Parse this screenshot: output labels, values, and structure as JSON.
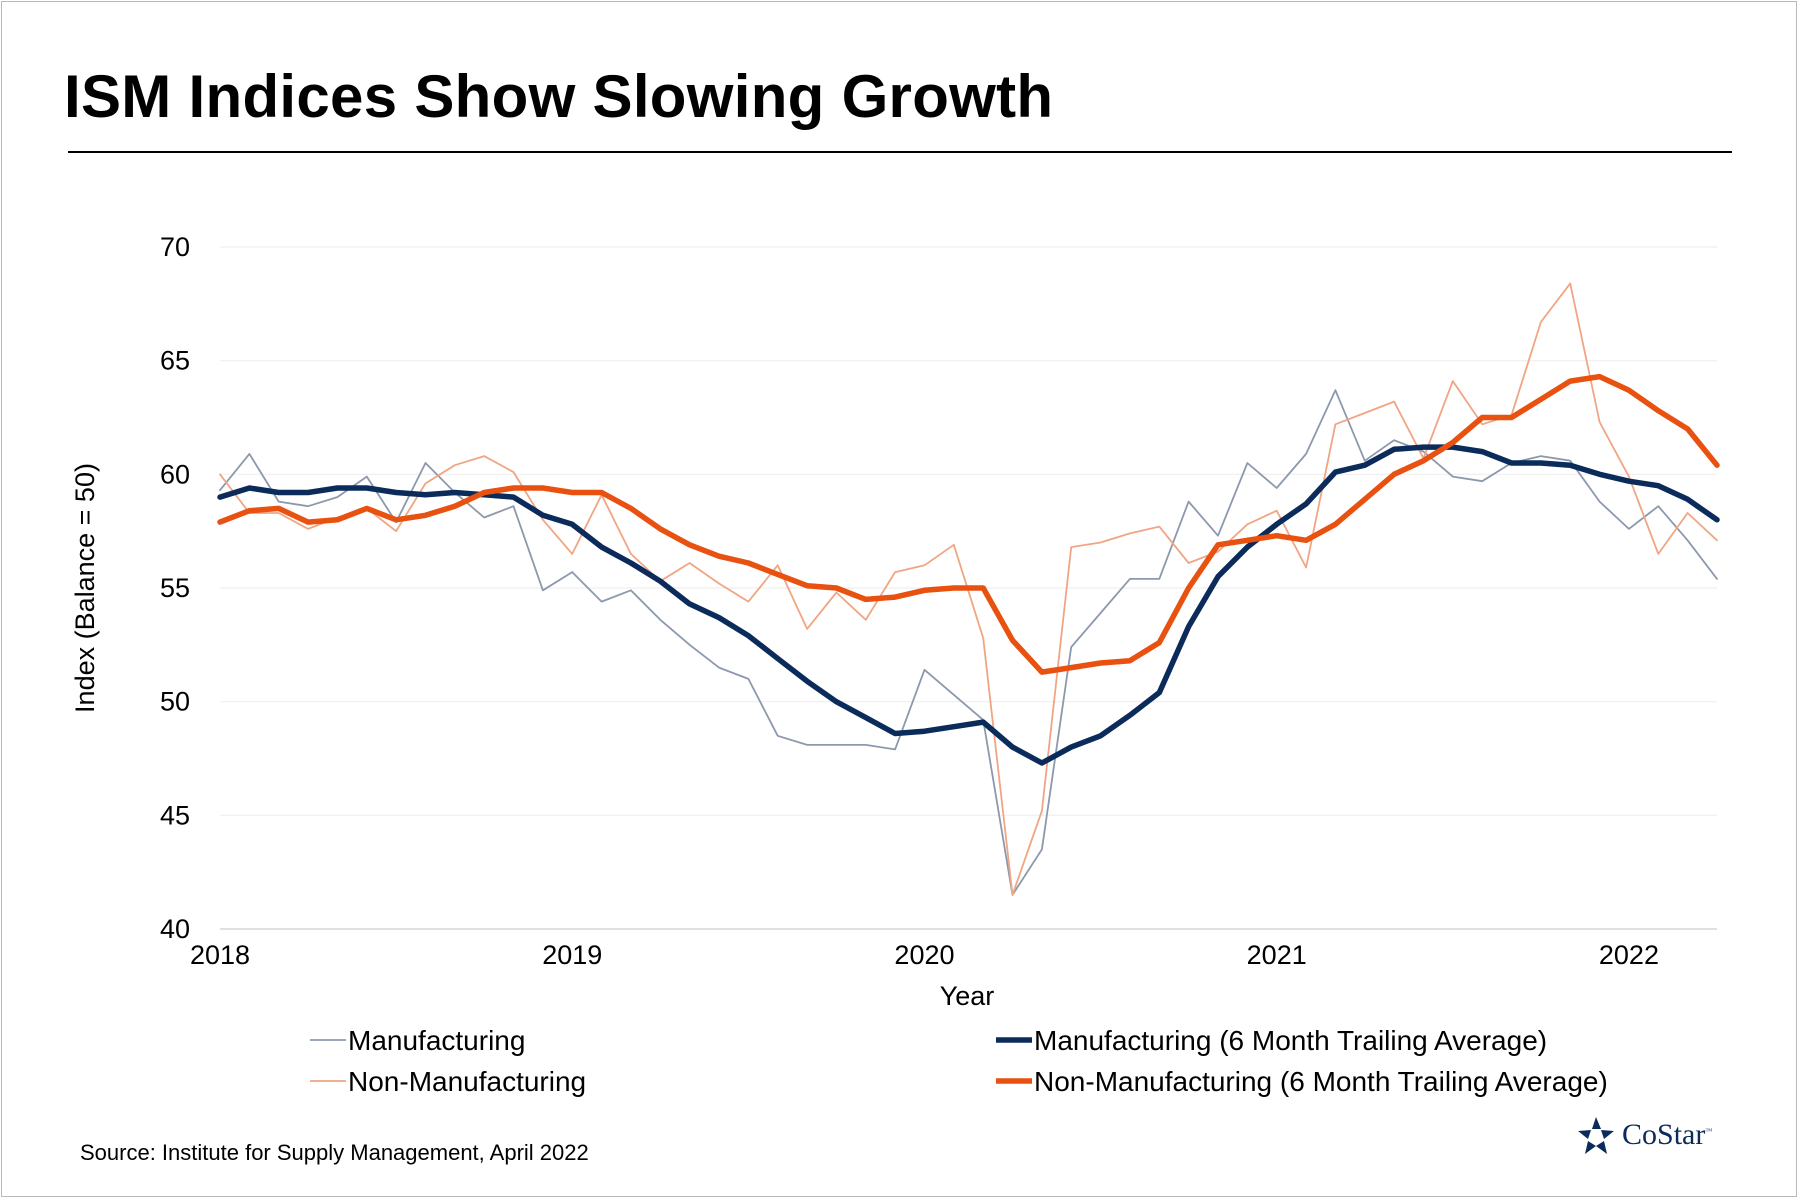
{
  "page": {
    "title": "ISM Indices Show Slowing Growth",
    "source": "Source: Institute for Supply Management, April 2022",
    "logo_text": "CoStar",
    "logo_tm": "™"
  },
  "colors": {
    "manufacturing": "#8c99ad",
    "non_manufacturing": "#f0a583",
    "manufacturing_avg": "#0b2b5b",
    "non_manufacturing_avg": "#e8510f",
    "logo": "#0b2b5b"
  },
  "chart_data": {
    "type": "line",
    "xlabel": "Year",
    "ylabel": "Index (Balance = 50)",
    "ylim": [
      40,
      70
    ],
    "yticks": [
      40,
      45,
      50,
      55,
      60,
      65,
      70
    ],
    "xlim": [
      2018.0,
      2022.25
    ],
    "xticks": [
      2018,
      2019,
      2020,
      2021,
      2022
    ],
    "grid": "horizontal",
    "legend_position": "bottom",
    "x_start": 2018.0,
    "x_step_months": 1,
    "series": [
      {
        "name": "Manufacturing",
        "color_key": "manufacturing",
        "width": "thin",
        "values": [
          59.3,
          60.9,
          58.8,
          58.6,
          59.0,
          59.9,
          57.9,
          60.5,
          59.2,
          58.1,
          58.6,
          54.9,
          55.7,
          54.4,
          54.9,
          53.6,
          52.5,
          51.5,
          51.0,
          48.5,
          48.1,
          48.1,
          48.1,
          47.9,
          51.4,
          50.3,
          49.2,
          41.5,
          43.5,
          52.4,
          53.9,
          55.4,
          55.4,
          58.8,
          57.3,
          60.5,
          59.4,
          60.9,
          63.7,
          60.6,
          61.5,
          61.0,
          59.9,
          59.7,
          60.5,
          60.8,
          60.6,
          58.8,
          57.6,
          58.6,
          57.1,
          55.4
        ]
      },
      {
        "name": "Non-Manufacturing",
        "color_key": "non_manufacturing",
        "width": "thin",
        "values": [
          60.0,
          58.3,
          58.3,
          57.6,
          58.1,
          58.5,
          57.5,
          59.6,
          60.4,
          60.8,
          60.1,
          58.0,
          56.5,
          59.1,
          56.5,
          55.3,
          56.1,
          55.2,
          54.4,
          56.0,
          53.2,
          54.8,
          53.6,
          55.7,
          56.0,
          56.9,
          52.8,
          41.5,
          45.2,
          56.8,
          57.0,
          57.4,
          57.7,
          56.1,
          56.6,
          57.8,
          58.4,
          55.9,
          62.2,
          62.7,
          63.2,
          60.7,
          64.1,
          62.2,
          62.6,
          66.7,
          68.4,
          62.3,
          59.9,
          56.5,
          58.3,
          57.1
        ]
      },
      {
        "name": "Manufacturing (6 Month Trailing Average)",
        "color_key": "manufacturing_avg",
        "width": "thick",
        "values": [
          59.0,
          59.4,
          59.2,
          59.2,
          59.4,
          59.4,
          59.2,
          59.1,
          59.2,
          59.1,
          59.0,
          58.2,
          57.8,
          56.8,
          56.1,
          55.3,
          54.3,
          53.7,
          52.9,
          51.9,
          50.9,
          50.0,
          49.3,
          48.6,
          48.7,
          48.9,
          49.1,
          48.0,
          47.3,
          48.0,
          48.5,
          49.4,
          50.4,
          53.3,
          55.5,
          56.8,
          57.8,
          58.7,
          60.1,
          60.4,
          61.1,
          61.2,
          61.2,
          61.0,
          60.5,
          60.5,
          60.4,
          60.0,
          59.7,
          59.5,
          58.9,
          58.0
        ]
      },
      {
        "name": "Non-Manufacturing (6 Month Trailing Average)",
        "color_key": "non_manufacturing_avg",
        "width": "thick",
        "values": [
          57.9,
          58.4,
          58.5,
          57.9,
          58.0,
          58.5,
          58.0,
          58.2,
          58.6,
          59.2,
          59.4,
          59.4,
          59.2,
          59.2,
          58.5,
          57.6,
          56.9,
          56.4,
          56.1,
          55.6,
          55.1,
          55.0,
          54.5,
          54.6,
          54.9,
          55.0,
          55.0,
          52.7,
          51.3,
          51.5,
          51.7,
          51.8,
          52.6,
          55.0,
          56.9,
          57.1,
          57.3,
          57.1,
          57.8,
          58.9,
          60.0,
          60.6,
          61.4,
          62.5,
          62.5,
          63.3,
          64.1,
          64.3,
          63.7,
          62.8,
          62.0,
          60.4
        ]
      }
    ]
  }
}
